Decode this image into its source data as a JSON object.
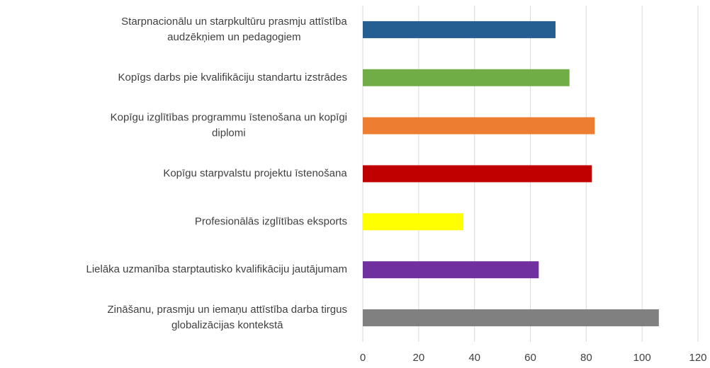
{
  "chart_data": {
    "type": "bar",
    "orientation": "horizontal",
    "categories": [
      [
        "Starpnacionālu un starpkultūru prasmju attīstība",
        "audzēkņiem un pedagogiem"
      ],
      [
        "Kopīgs darbs pie kvalifikāciju standartu izstrādes"
      ],
      [
        "Kopīgu izglītības programmu īstenošana un kopīgi",
        "diplomi"
      ],
      [
        "Kopīgu starpvalstu projektu īstenošana"
      ],
      [
        "Profesionālās izglītības eksports"
      ],
      [
        "Lielāka uzmanība starptautisko kvalifikāciju jautājumam"
      ],
      [
        "Zināšanu, prasmju un iemaņu attīstība darba tirgus",
        "globalizācijas kontekstā"
      ]
    ],
    "values": [
      69,
      74,
      83,
      82,
      36,
      63,
      106
    ],
    "colors": [
      "#255e91",
      "#70ad47",
      "#ed7d31",
      "#c00000",
      "#ffff00",
      "#7030a0",
      "#808080"
    ],
    "xlim": [
      0,
      120
    ],
    "xticks": [
      0,
      20,
      40,
      60,
      80,
      100,
      120
    ],
    "grid": true
  }
}
